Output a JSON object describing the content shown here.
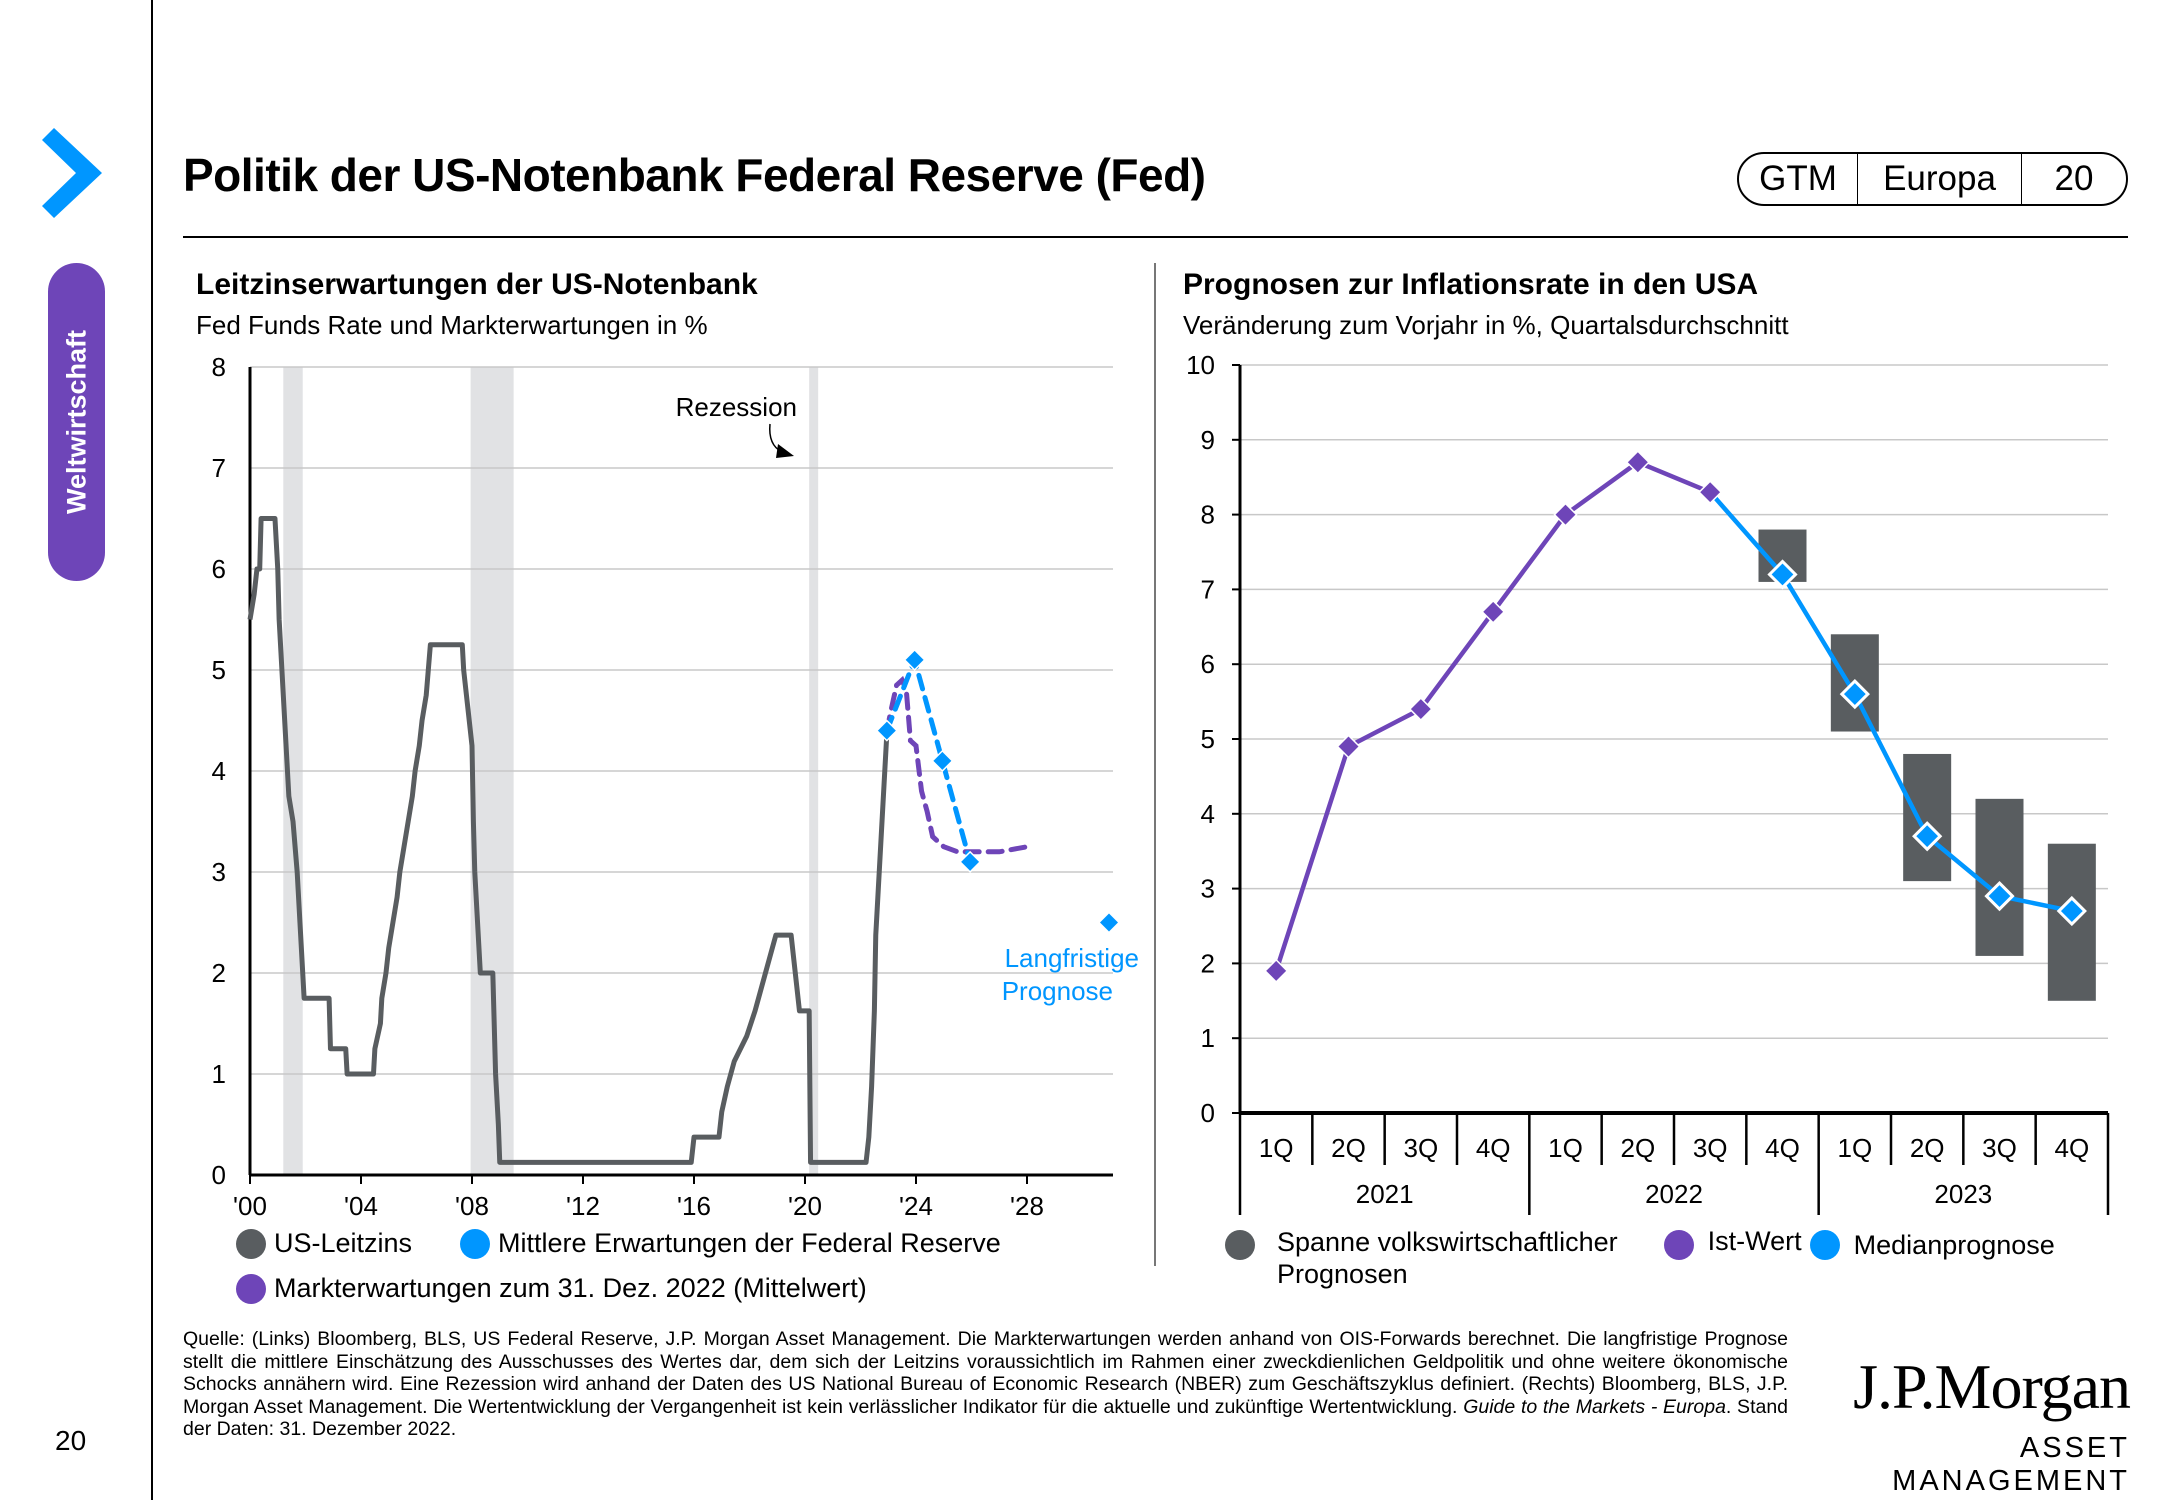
{
  "header": {
    "title": "Politik der US-Notenbank Federal Reserve (Fed)",
    "badge": {
      "series": "GTM",
      "region": "Europa",
      "page": "20"
    }
  },
  "sidebar": {
    "section_label": "Weltwirtschaft",
    "page_number": "20",
    "accent_color": "#0096ff",
    "section_color": "#6e45b8"
  },
  "colors": {
    "fed_rate": "#595d60",
    "fed_expectations": "#0096ff",
    "market_expectations": "#6e45b8",
    "recession_shading": "#e1e2e4",
    "range_bar": "#595d60"
  },
  "chart_data": [
    {
      "type": "line",
      "title": "Leitzinserwartungen der US-Notenbank",
      "subtitle": "Fed Funds Rate und Markterwartungen in %",
      "xlabel": "",
      "ylabel": "",
      "ylim": [
        0,
        8
      ],
      "xlim": [
        2000,
        2031
      ],
      "yticks": [
        "0",
        "1",
        "2",
        "3",
        "4",
        "5",
        "6",
        "7",
        "8"
      ],
      "xticks": [
        {
          "label": "'00",
          "x": 2000
        },
        {
          "label": "'04",
          "x": 2004
        },
        {
          "label": "'08",
          "x": 2008
        },
        {
          "label": "'12",
          "x": 2012
        },
        {
          "label": "'16",
          "x": 2016
        },
        {
          "label": "'20",
          "x": 2020
        },
        {
          "label": "'24",
          "x": 2024
        },
        {
          "label": "'28",
          "x": 2028
        }
      ],
      "grid": true,
      "recessions": [
        [
          2001.2,
          2001.9
        ],
        [
          2007.95,
          2009.5
        ],
        [
          2020.15,
          2020.4
        ]
      ],
      "annotations": [
        {
          "text": "Rezession",
          "x": 2038,
          "y": 7.3
        },
        {
          "text_lines": [
            "Langfristige",
            "Prognose"
          ],
          "x": 2030.5,
          "y": 2.5
        }
      ],
      "series": [
        {
          "name": "US-Leitzins",
          "style": "solid",
          "points": [
            [
              2000.0,
              5.5
            ],
            [
              2000.15,
              5.75
            ],
            [
              2000.25,
              6.0
            ],
            [
              2000.35,
              6.0
            ],
            [
              2000.4,
              6.5
            ],
            [
              2000.9,
              6.5
            ],
            [
              2001.0,
              6.0
            ],
            [
              2001.05,
              5.5
            ],
            [
              2001.15,
              5.0
            ],
            [
              2001.25,
              4.5
            ],
            [
              2001.35,
              4.0
            ],
            [
              2001.4,
              3.75
            ],
            [
              2001.55,
              3.5
            ],
            [
              2001.7,
              3.0
            ],
            [
              2001.8,
              2.5
            ],
            [
              2001.9,
              2.0
            ],
            [
              2001.95,
              1.75
            ],
            [
              2002.85,
              1.75
            ],
            [
              2002.9,
              1.25
            ],
            [
              2003.45,
              1.25
            ],
            [
              2003.5,
              1.0
            ],
            [
              2004.45,
              1.0
            ],
            [
              2004.5,
              1.25
            ],
            [
              2004.7,
              1.5
            ],
            [
              2004.75,
              1.75
            ],
            [
              2004.9,
              2.0
            ],
            [
              2005.0,
              2.25
            ],
            [
              2005.15,
              2.5
            ],
            [
              2005.3,
              2.75
            ],
            [
              2005.4,
              3.0
            ],
            [
              2005.55,
              3.25
            ],
            [
              2005.7,
              3.5
            ],
            [
              2005.85,
              3.75
            ],
            [
              2005.95,
              4.0
            ],
            [
              2006.1,
              4.25
            ],
            [
              2006.2,
              4.5
            ],
            [
              2006.35,
              4.75
            ],
            [
              2006.5,
              5.25
            ],
            [
              2007.65,
              5.25
            ],
            [
              2007.7,
              5.0
            ],
            [
              2007.8,
              4.75
            ],
            [
              2007.9,
              4.5
            ],
            [
              2008.0,
              4.25
            ],
            [
              2008.05,
              3.5
            ],
            [
              2008.1,
              3.0
            ],
            [
              2008.25,
              2.25
            ],
            [
              2008.3,
              2.0
            ],
            [
              2008.75,
              2.0
            ],
            [
              2008.8,
              1.5
            ],
            [
              2008.85,
              1.0
            ],
            [
              2008.95,
              0.5
            ],
            [
              2009.0,
              0.125
            ],
            [
              2015.9,
              0.125
            ],
            [
              2016.0,
              0.375
            ],
            [
              2016.9,
              0.375
            ],
            [
              2017.0,
              0.625
            ],
            [
              2017.2,
              0.875
            ],
            [
              2017.45,
              1.125
            ],
            [
              2017.9,
              1.375
            ],
            [
              2018.2,
              1.625
            ],
            [
              2018.45,
              1.875
            ],
            [
              2018.7,
              2.125
            ],
            [
              2018.95,
              2.375
            ],
            [
              2019.5,
              2.375
            ],
            [
              2019.6,
              2.125
            ],
            [
              2019.7,
              1.875
            ],
            [
              2019.8,
              1.625
            ],
            [
              2020.15,
              1.625
            ],
            [
              2020.2,
              0.125
            ],
            [
              2022.2,
              0.125
            ],
            [
              2022.3,
              0.375
            ],
            [
              2022.4,
              0.875
            ],
            [
              2022.5,
              1.625
            ],
            [
              2022.55,
              2.375
            ],
            [
              2022.7,
              3.125
            ],
            [
              2022.85,
              3.875
            ],
            [
              2022.95,
              4.375
            ]
          ]
        },
        {
          "name": "Mittlere Erwartungen der Federal Reserve",
          "style": "dashed-markers",
          "points": [
            [
              2022.95,
              4.4
            ],
            [
              2023.95,
              5.1
            ],
            [
              2024.95,
              4.1
            ],
            [
              2025.95,
              3.1
            ]
          ],
          "long_run": {
            "x": 2030.9,
            "y": 2.5
          }
        },
        {
          "name": "Markterwartungen zum 31. Dez. 2022 (Mittelwert)",
          "style": "dashed",
          "points": [
            [
              2022.95,
              4.4
            ],
            [
              2023.1,
              4.6
            ],
            [
              2023.3,
              4.85
            ],
            [
              2023.5,
              4.9
            ],
            [
              2023.65,
              4.8
            ],
            [
              2023.8,
              4.3
            ],
            [
              2024.0,
              4.25
            ],
            [
              2024.2,
              3.8
            ],
            [
              2024.4,
              3.6
            ],
            [
              2024.6,
              3.35
            ],
            [
              2025.0,
              3.25
            ],
            [
              2025.5,
              3.2
            ],
            [
              2026.0,
              3.2
            ],
            [
              2027.0,
              3.2
            ],
            [
              2028.0,
              3.25
            ]
          ]
        }
      ],
      "legend": {
        "position": "bottom",
        "items": [
          {
            "label": "US-Leitzins",
            "color": "#595d60"
          },
          {
            "label": "Mittlere Erwartungen der Federal Reserve",
            "color": "#0096ff"
          },
          {
            "label": "Markterwartungen zum 31. Dez. 2022 (Mittelwert)",
            "color": "#6e45b8"
          }
        ]
      }
    },
    {
      "type": "line",
      "title": "Prognosen zur Inflationsrate in den USA",
      "subtitle": "Veränderung zum Vorjahr in %, Quartalsdurchschnitt",
      "xlabel": "",
      "ylabel": "",
      "ylim": [
        0,
        10
      ],
      "yticks": [
        "0",
        "1",
        "2",
        "3",
        "4",
        "5",
        "6",
        "7",
        "8",
        "9",
        "10"
      ],
      "grid": true,
      "categories": [
        "1Q",
        "2Q",
        "3Q",
        "4Q",
        "1Q",
        "2Q",
        "3Q",
        "4Q",
        "1Q",
        "2Q",
        "3Q",
        "4Q"
      ],
      "category_groups": [
        {
          "label": "2021",
          "span": 4
        },
        {
          "label": "2022",
          "span": 4
        },
        {
          "label": "2023",
          "span": 4
        }
      ],
      "series": [
        {
          "name": "Ist-Wert",
          "values": [
            1.9,
            4.9,
            5.4,
            6.7,
            8.0,
            8.7,
            8.3,
            null,
            null,
            null,
            null,
            null
          ]
        },
        {
          "name": "Medianprognose",
          "values": [
            null,
            null,
            null,
            null,
            null,
            null,
            8.3,
            7.2,
            5.6,
            3.7,
            2.9,
            2.7
          ]
        },
        {
          "name": "Spanne volkswirtschaftlicher Prognosen",
          "type": "range",
          "ranges": [
            null,
            null,
            null,
            null,
            null,
            null,
            null,
            [
              7.1,
              7.8
            ],
            [
              5.1,
              6.4
            ],
            [
              3.1,
              4.8
            ],
            [
              2.1,
              4.2
            ],
            [
              1.5,
              3.6
            ]
          ]
        }
      ],
      "legend": {
        "position": "bottom",
        "items": [
          {
            "label": "Spanne volkswirtschaftlicher Prognosen",
            "label_lines": [
              "Spanne volkswirtschaftlicher",
              "Prognosen"
            ],
            "color": "#595d60"
          },
          {
            "label": "Ist-Wert",
            "color": "#6e45b8"
          },
          {
            "label": "Medianprognose",
            "color": "#0096ff"
          }
        ]
      }
    }
  ],
  "footnote": {
    "text": "Quelle: (Links) Bloomberg, BLS, US Federal Reserve, J.P. Morgan Asset Management. Die Markterwartungen werden anhand von OIS-Forwards berechnet. Die langfristige Prognose stellt die mittlere Einschätzung des Ausschusses des Wertes dar, dem sich der Leitzins voraussichtlich im Rahmen einer zweckdienlichen Geldpolitik und ohne weitere ökonomische Schocks annähern wird. Eine Rezession wird anhand der Daten des US National Bureau of Economic Research (NBER) zum Geschäftszyklus definiert. (Rechts) Bloomberg, BLS, J.P. Morgan Asset Management. Die Wertentwicklung der Vergangenheit ist kein verlässlicher Indikator für die aktuelle und zukünftige Wertentwicklung.",
    "italic": "Guide to the Markets - Europa",
    "tail": ". Stand der Daten: 31. Dezember 2022."
  },
  "logo": {
    "line1": "J.P.Morgan",
    "line2": "ASSET MANAGEMENT"
  }
}
